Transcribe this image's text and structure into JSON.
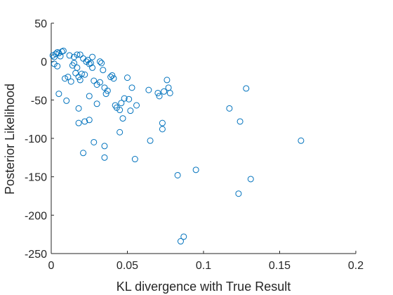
{
  "chart_data": {
    "type": "scatter",
    "title": "",
    "xlabel": "KL divergence with True Result",
    "ylabel": "Posterior Likelihood",
    "xlim": [
      0,
      0.2
    ],
    "ylim": [
      -250,
      50
    ],
    "xticks": [
      0,
      0.05,
      0.1,
      0.15,
      0.2
    ],
    "xtick_labels": [
      "0",
      "0.05",
      "0.1",
      "0.15",
      "0.2"
    ],
    "yticks": [
      -250,
      -200,
      -150,
      -100,
      -50,
      0,
      50
    ],
    "ytick_labels": [
      "-250",
      "-200",
      "-150",
      "-100",
      "-50",
      "0",
      "50"
    ],
    "grid": false,
    "marker": "open-circle",
    "marker_color": "#0072BD",
    "axis_color": "#262626",
    "series": [
      {
        "points": [
          [
            0.001,
            8
          ],
          [
            0.002,
            6
          ],
          [
            0.003,
            10
          ],
          [
            0.004,
            12
          ],
          [
            0.005,
            11
          ],
          [
            0.006,
            7
          ],
          [
            0.007,
            13
          ],
          [
            0.008,
            14
          ],
          [
            0.012,
            8
          ],
          [
            0.015,
            6
          ],
          [
            0.017,
            9
          ],
          [
            0.019,
            9
          ],
          [
            0.021,
            4
          ],
          [
            0.024,
            2
          ],
          [
            0.027,
            6
          ],
          [
            0.002,
            -3
          ],
          [
            0.004,
            -6
          ],
          [
            0.009,
            -22
          ],
          [
            0.011,
            -20
          ],
          [
            0.013,
            -26
          ],
          [
            0.014,
            -5
          ],
          [
            0.015,
            -2
          ],
          [
            0.016,
            -15
          ],
          [
            0.017,
            -8
          ],
          [
            0.018,
            -20
          ],
          [
            0.019,
            -24
          ],
          [
            0.02,
            -16
          ],
          [
            0.022,
            -17
          ],
          [
            0.023,
            0
          ],
          [
            0.025,
            -3
          ],
          [
            0.026,
            -2
          ],
          [
            0.027,
            -8
          ],
          [
            0.028,
            -25
          ],
          [
            0.03,
            -30
          ],
          [
            0.032,
            -27
          ],
          [
            0.032,
            0
          ],
          [
            0.033,
            -2
          ],
          [
            0.034,
            -11
          ],
          [
            0.035,
            -34
          ],
          [
            0.036,
            -42
          ],
          [
            0.037,
            -38
          ],
          [
            0.039,
            -20
          ],
          [
            0.04,
            -18
          ],
          [
            0.041,
            -22
          ],
          [
            0.042,
            -57
          ],
          [
            0.043,
            -60
          ],
          [
            0.045,
            -63
          ],
          [
            0.046,
            -54
          ],
          [
            0.047,
            -74
          ],
          [
            0.048,
            -48
          ],
          [
            0.05,
            -21
          ],
          [
            0.051,
            -49
          ],
          [
            0.052,
            -64
          ],
          [
            0.053,
            -34
          ],
          [
            0.056,
            -57
          ],
          [
            0.064,
            -37
          ],
          [
            0.065,
            -103
          ],
          [
            0.07,
            -41
          ],
          [
            0.071,
            -45
          ],
          [
            0.073,
            -80
          ],
          [
            0.073,
            -88
          ],
          [
            0.074,
            -39
          ],
          [
            0.076,
            -24
          ],
          [
            0.077,
            -34
          ],
          [
            0.078,
            -41
          ],
          [
            0.005,
            -42
          ],
          [
            0.01,
            -51
          ],
          [
            0.018,
            -61
          ],
          [
            0.018,
            -80
          ],
          [
            0.022,
            -78
          ],
          [
            0.025,
            -76
          ],
          [
            0.025,
            -45
          ],
          [
            0.028,
            -105
          ],
          [
            0.03,
            -55
          ],
          [
            0.035,
            -110
          ],
          [
            0.035,
            -125
          ],
          [
            0.021,
            -119
          ],
          [
            0.045,
            -92
          ],
          [
            0.055,
            -127
          ],
          [
            0.083,
            -148
          ],
          [
            0.095,
            -141
          ],
          [
            0.085,
            -234
          ],
          [
            0.087,
            -228
          ],
          [
            0.117,
            -61
          ],
          [
            0.124,
            -78
          ],
          [
            0.128,
            -35
          ],
          [
            0.123,
            -172
          ],
          [
            0.131,
            -153
          ],
          [
            0.164,
            -103
          ]
        ]
      }
    ]
  }
}
